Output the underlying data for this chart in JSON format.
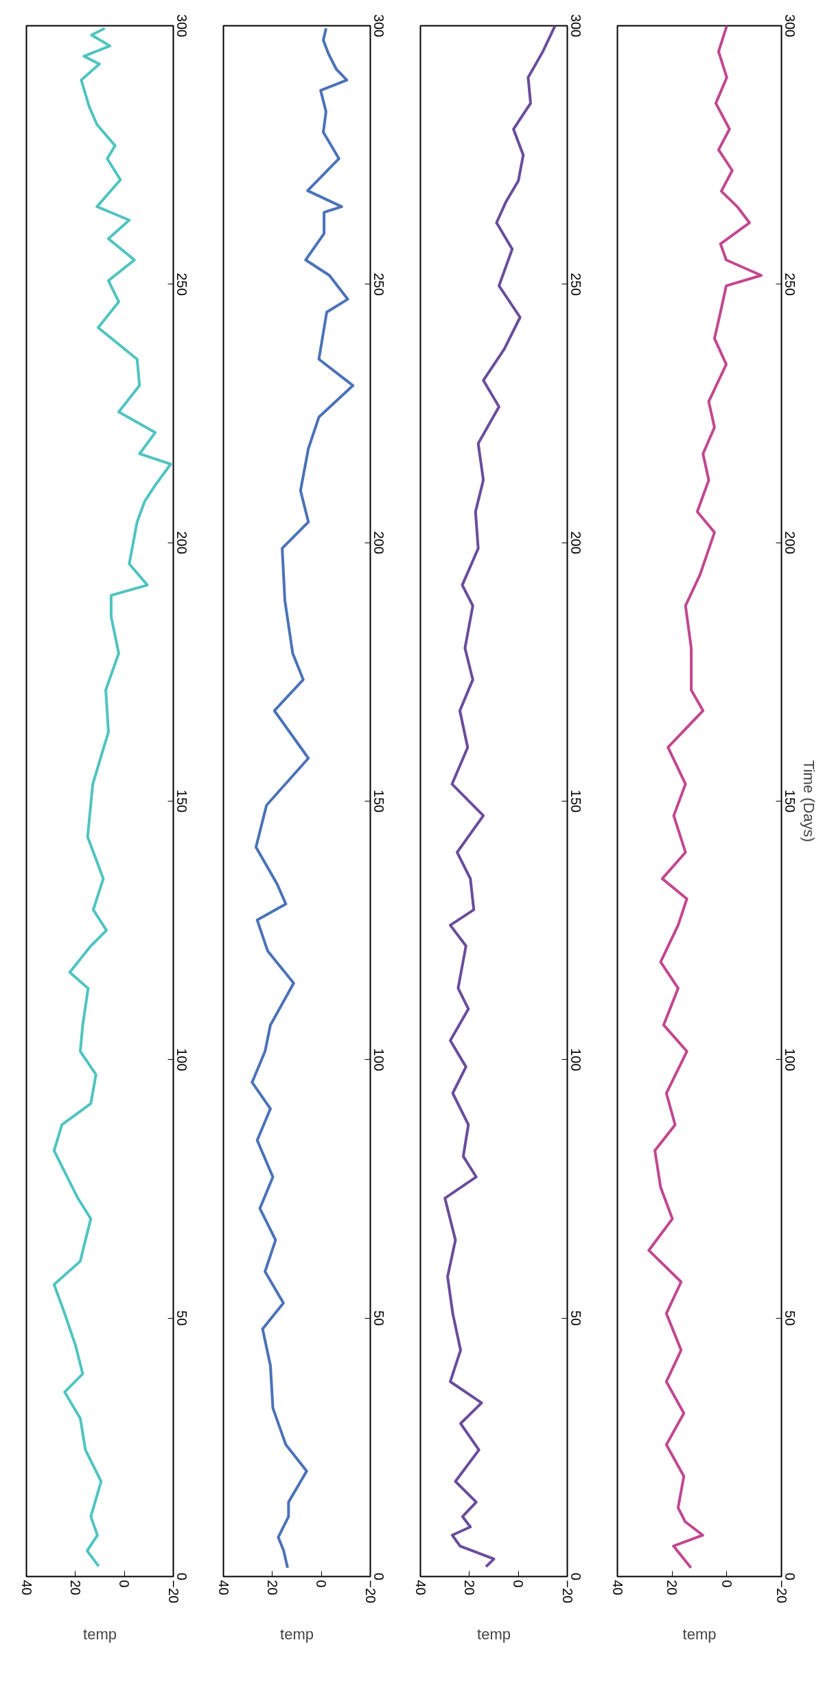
{
  "chart_data": [
    {
      "type": "line",
      "xlabel": "temp",
      "color": "#4fc4c0",
      "ylim": [
        0,
        300
      ],
      "yticks": [
        0,
        50,
        100,
        150,
        200,
        250,
        300
      ],
      "xlim": [
        40,
        -20
      ],
      "xticks": [
        40,
        20,
        0,
        -20
      ],
      "values": [
        2,
        5,
        8,
        11.6,
        18.4,
        24.5,
        30.6,
        35.7,
        39.2,
        44.8,
        50.9,
        56.5,
        61,
        65.1,
        69.2,
        73.2,
        78.3,
        82.4,
        87.4,
        91.5,
        97.1,
        101.6,
        106.7,
        113.8,
        116.9,
        122,
        125,
        129,
        135,
        143.1,
        153.3,
        163.4,
        171.5,
        178.6,
        185.7,
        189.8,
        191.8,
        195.9,
        204,
        208,
        211.1,
        215.2,
        217.2,
        221.3,
        225.3,
        230.4,
        235.5,
        241.6,
        246.6,
        250.7,
        254.7,
        258.8,
        262.4,
        265,
        270.2,
        274.3,
        276.8,
        280.9,
        284.4,
        289.5,
        292.6,
        294.1,
        296.1,
        298.2,
        299.5
      ],
      "x": [
        10.5,
        15.2,
        11,
        13.7,
        9.5,
        15.9,
        18,
        24.4,
        17,
        20,
        24.4,
        28.7,
        18,
        15.9,
        13.7,
        19,
        24.4,
        28.7,
        25.5,
        13.7,
        11.6,
        18,
        17,
        14.8,
        22.3,
        13.7,
        7.3,
        12.7,
        8.6,
        15,
        12.9,
        6.5,
        7.6,
        2.3,
        5.4,
        5.4,
        -9.4,
        -2,
        -5.2,
        -8.3,
        -12.6,
        -18.9,
        -6.2,
        -12.6,
        2.3,
        -6.2,
        -5.2,
        10.7,
        2.3,
        6.5,
        -4.1,
        6.5,
        -2,
        11.2,
        1.6,
        7,
        3.8,
        11.2,
        14.4,
        17.6,
        10.2,
        16.5,
        5.9,
        13.4,
        8
      ]
    },
    {
      "type": "line",
      "xlabel": "temp",
      "color": "#4a72b8",
      "ylim": [
        0,
        300
      ],
      "yticks": [
        0,
        50,
        100,
        150,
        200,
        250,
        300
      ],
      "xlim": [
        40,
        -20
      ],
      "xticks": [
        40,
        20,
        0,
        -20
      ],
      "values": [
        1.7,
        5,
        7.6,
        11.6,
        14.4,
        20.4,
        25.5,
        32.6,
        40.8,
        47.9,
        52.9,
        59,
        65.1,
        71.2,
        77.3,
        84.4,
        90.5,
        95.6,
        101.6,
        106.7,
        114.8,
        121,
        127,
        130.1,
        134,
        141.1,
        149.2,
        158.3,
        167.5,
        173.5,
        178.6,
        188.8,
        198.9,
        204,
        210.1,
        218.2,
        224.3,
        230.4,
        235.5,
        244.6,
        247.1,
        251.7,
        254.7,
        259.8,
        263.9,
        265,
        268.1,
        274.3,
        279.4,
        283.4,
        287.5,
        289.5,
        291.6,
        294.6,
        297.2,
        299.5
      ],
      "x": [
        13.8,
        15.4,
        17.6,
        13.4,
        13.4,
        6,
        14.5,
        19.8,
        20.8,
        24,
        15.5,
        23,
        18.7,
        25.1,
        19.8,
        26.2,
        20.8,
        28.3,
        23,
        20.8,
        11.3,
        21.9,
        26.2,
        14.5,
        18.1,
        26.7,
        22.4,
        5.3,
        19.2,
        7.4,
        11.7,
        14.9,
        16,
        5.3,
        8.5,
        5.3,
        1,
        -12.9,
        1,
        -2.2,
        -10.8,
        -3.3,
        6.4,
        -1.1,
        -1.1,
        -8.3,
        5.6,
        -7.2,
        -0.8,
        -1.9,
        0.3,
        -10.4,
        -6.1,
        -2.9,
        -0.8,
        -1.9
      ]
    },
    {
      "type": "line",
      "xlabel": "temp",
      "color": "#6a4c9c",
      "ylim": [
        0,
        300
      ],
      "yticks": [
        0,
        50,
        100,
        150,
        200,
        250,
        300
      ],
      "xlim": [
        40,
        -20
      ],
      "xticks": [
        40,
        20,
        0,
        -20
      ],
      "values": [
        1.9,
        3.4,
        5.9,
        8,
        9.6,
        11.6,
        14.4,
        18.4,
        24.5,
        29.6,
        33.6,
        37.7,
        43.8,
        50.9,
        58,
        65.1,
        73.2,
        77.3,
        81.3,
        87.4,
        93.5,
        98.6,
        103.7,
        109.8,
        113.8,
        122,
        126,
        129,
        135,
        140.1,
        147.2,
        153.3,
        160.4,
        167.5,
        173.5,
        179.6,
        187.8,
        191.8,
        198.9,
        206,
        212.1,
        219.2,
        226.3,
        231.4,
        237.5,
        243.6,
        249.7,
        256.8,
        261.9,
        266,
        270,
        275,
        280,
        285,
        290,
        295,
        300
      ],
      "x": [
        13.2,
        10,
        23.8,
        27,
        19.6,
        22.8,
        17.2,
        25.7,
        16.1,
        23.6,
        15,
        27.8,
        23.6,
        26.8,
        28.9,
        25.7,
        30,
        17.2,
        22.5,
        20.4,
        26.8,
        21.4,
        27.8,
        20.4,
        24.6,
        21.4,
        27.8,
        18.2,
        19.6,
        25,
        14.3,
        27.1,
        20.7,
        23.9,
        18.6,
        21.8,
        18.6,
        22.9,
        16.4,
        17.5,
        14.3,
        16.4,
        7.9,
        14.3,
        5.7,
        -0.7,
        7.9,
        2.5,
        8.9,
        5,
        0,
        -2,
        2,
        -5,
        -4,
        -10,
        -15
      ]
    },
    {
      "type": "line",
      "xlabel": "temp",
      "ylabel": "Time (Days)",
      "color": "#c2478f",
      "ylim": [
        0,
        300
      ],
      "yticks": [
        0,
        50,
        100,
        150,
        200,
        250,
        300
      ],
      "xlim": [
        40,
        -20
      ],
      "xticks": [
        40,
        20,
        0,
        -20
      ],
      "values": [
        1.7,
        5.9,
        8,
        10.6,
        13.3,
        19.4,
        25.5,
        31.6,
        37.7,
        43.8,
        50.9,
        57,
        63.1,
        69.2,
        75.3,
        82.4,
        87.4,
        93.5,
        101.6,
        106.7,
        113.8,
        118.9,
        126,
        131.1,
        135,
        140.1,
        147.2,
        153.3,
        160.4,
        167.5,
        171.5,
        179.6,
        187.8,
        193.8,
        202,
        206,
        212.1,
        217.2,
        222.3,
        227.3,
        234.5,
        239.5,
        244.6,
        249.7,
        251.7,
        254.7,
        257.8,
        261.9,
        264.9,
        268,
        272,
        276,
        280,
        285,
        290,
        295,
        300
      ],
      "x": [
        13.1,
        19.5,
        8.8,
        15.2,
        17.8,
        15.7,
        22.1,
        15.7,
        22.1,
        16.7,
        22.1,
        16.7,
        28.5,
        19.9,
        24.2,
        26.3,
        18.9,
        22.1,
        14.6,
        23.1,
        17.8,
        24.2,
        17.8,
        14.6,
        23.6,
        15.1,
        19.4,
        15.1,
        21.5,
        8.7,
        13,
        13,
        15.1,
        9.8,
        4.5,
        10.8,
        6.6,
        8.7,
        4.5,
        6.6,
        0.2,
        4.5,
        2.3,
        0.2,
        -12.6,
        0.2,
        2.3,
        -8.3,
        -4,
        2,
        -2,
        3,
        -1,
        4,
        0,
        3,
        0
      ]
    }
  ]
}
